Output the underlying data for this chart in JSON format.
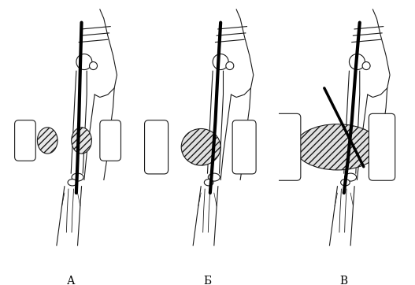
{
  "labels": [
    "А",
    "Б",
    "В"
  ],
  "background_color": "#ffffff",
  "line_color": "#1a1a1a",
  "figsize": [
    5.27,
    3.62
  ],
  "dpi": 100
}
